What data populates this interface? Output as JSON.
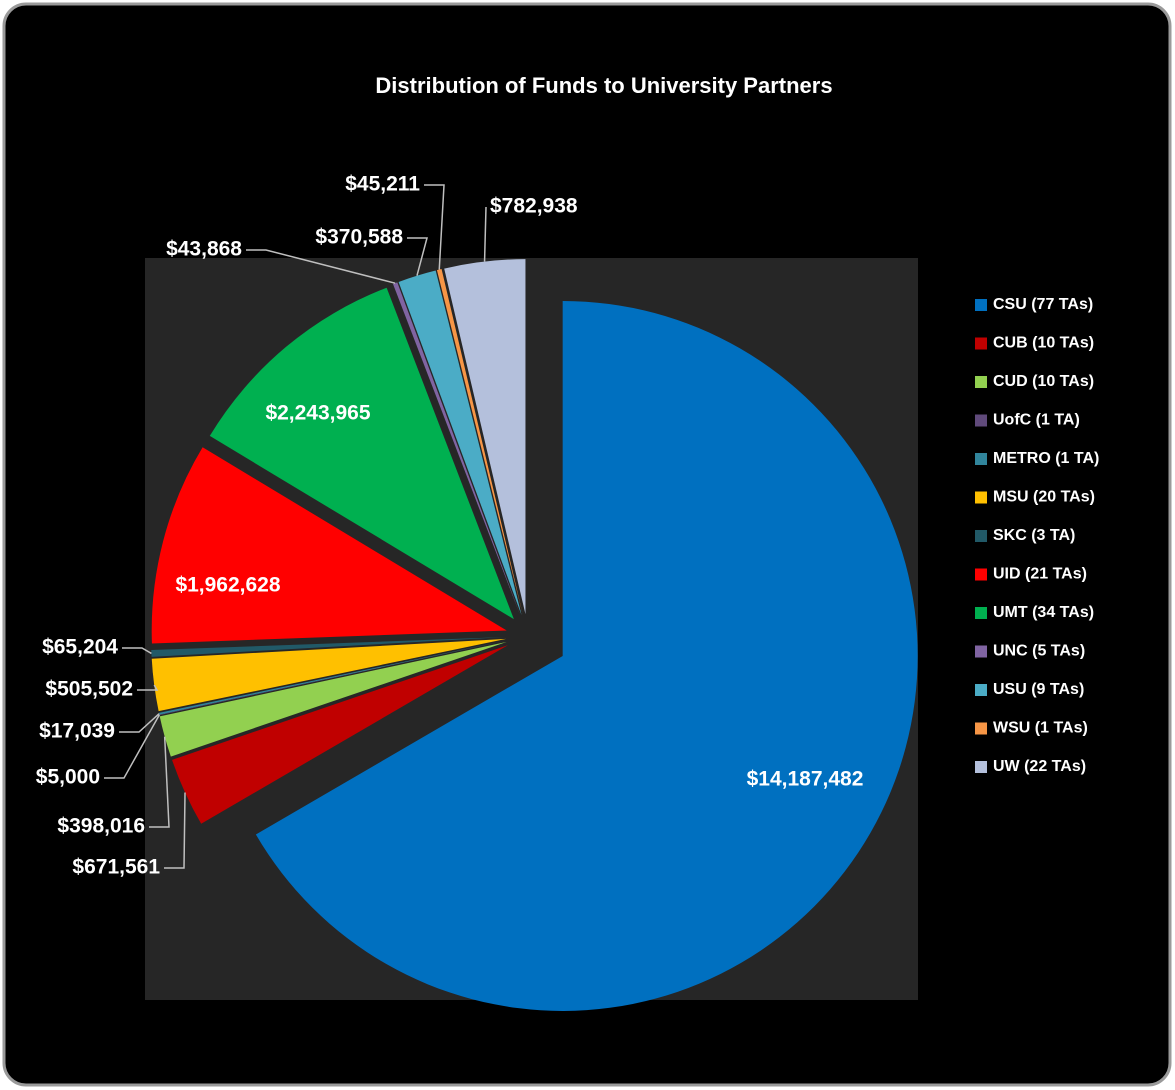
{
  "chart_data": {
    "type": "pie",
    "title": "Distribution of Funds to University Partners",
    "categories": [
      "CSU (77 TAs)",
      "CUB (10 TAs)",
      "CUD (10 TAs)",
      "UofC (1 TA)",
      "METRO (1 TA)",
      "MSU (20 TAs)",
      "SKC (3 TA)",
      "UID (21 TAs)",
      "UMT (34 TAs)",
      "UNC (5 TAs)",
      "USU (9 TAs)",
      "WSU (1 TAs)",
      "UW (22 TAs)"
    ],
    "values": [
      14187482,
      671561,
      398016,
      5000,
      17039,
      505502,
      65204,
      1962628,
      2243965,
      43868,
      370588,
      45211,
      782938
    ],
    "value_labels": [
      "$14,187,482",
      "$671,561",
      "$398,016",
      "$5,000",
      "$17,039",
      "$505,502",
      "$65,204",
      "$1,962,628",
      "$2,243,965",
      "$43,868",
      "$370,588",
      "$45,211",
      "$782,938"
    ],
    "colors": [
      "#0070c0",
      "#c00000",
      "#92d050",
      "#604a7b",
      "#31859c",
      "#ffc000",
      "#215967",
      "#ff0000",
      "#00b050",
      "#8064a2",
      "#4bacc6",
      "#f79646",
      "#b4c0dc"
    ],
    "legend": "right"
  }
}
